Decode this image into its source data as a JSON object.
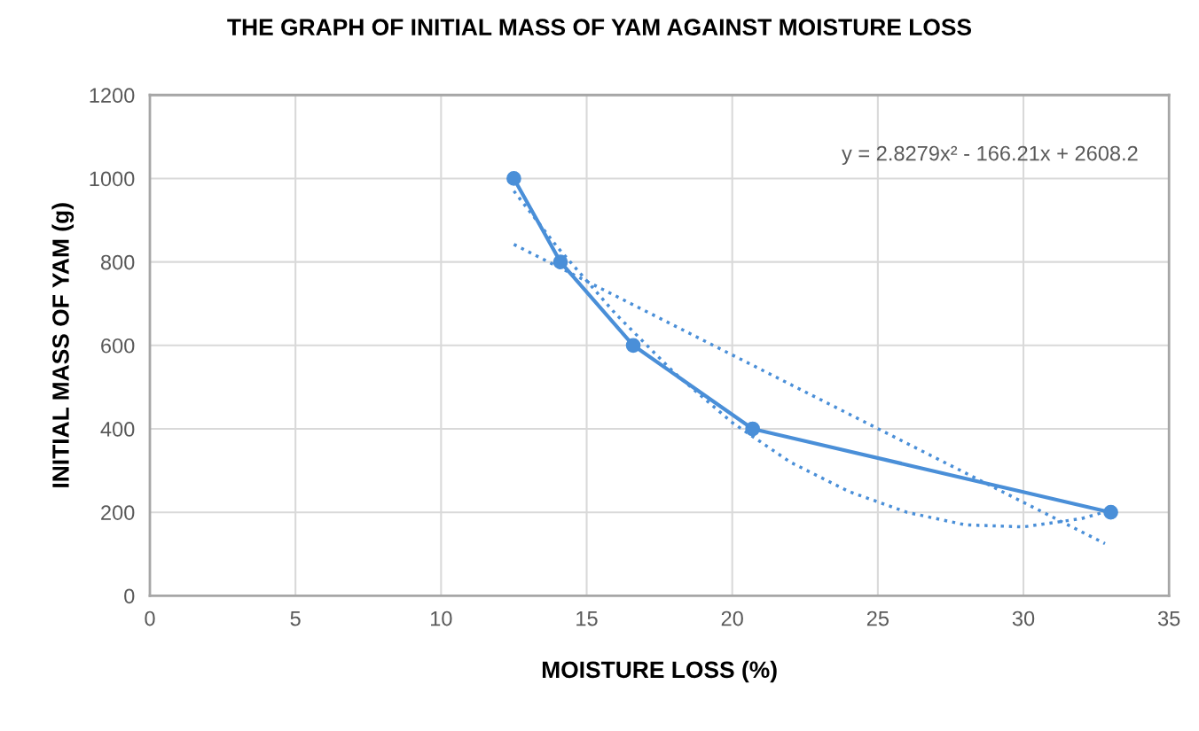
{
  "chart_data": {
    "type": "line",
    "title": "THE GRAPH OF INITIAL MASS OF YAM AGAINST MOISTURE LOSS",
    "xlabel": "MOISTURE LOSS (%)",
    "ylabel": "INITIAL MASS OF YAM (g)",
    "annotations": [
      "y = 2.8279x² - 166.21x + 2608.2"
    ],
    "x": [
      12.5,
      14.1,
      16.6,
      20.7,
      33.0
    ],
    "series": [
      {
        "color": "#4a8fd8",
        "values": [
          1000,
          800,
          600,
          400,
          200
        ],
        "marker": "circle",
        "line_style": "solid"
      },
      {
        "type": "line",
        "color": "#4a8fd8",
        "x": [
          12.5,
          32.8
        ],
        "values": [
          842,
          125
        ],
        "marker": "none",
        "line_style": "dotted"
      },
      {
        "type": "line",
        "color": "#4a8fd8",
        "x": [
          12.5,
          14,
          16,
          18,
          20,
          22,
          24,
          26,
          28,
          30,
          32,
          33
        ],
        "values": [
          970,
          835,
          675,
          535,
          415,
          320,
          250,
          200,
          170,
          165,
          185,
          205
        ],
        "marker": "none",
        "line_style": "dotted"
      }
    ],
    "xlim": [
      0,
      35
    ],
    "xticks": [
      0,
      5,
      10,
      15,
      20,
      25,
      30,
      35
    ],
    "ylim": [
      0,
      1200
    ],
    "yticks": [
      0,
      200,
      400,
      600,
      800,
      1000,
      1200
    ],
    "grid": true,
    "legend": false
  }
}
